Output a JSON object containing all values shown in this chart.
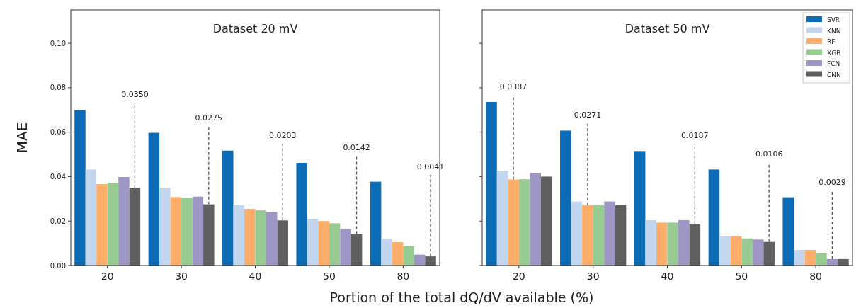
{
  "chart_data": [
    {
      "type": "bar",
      "title": "Dataset 20 mV",
      "xlabel": "Portion of the total dQ/dV available (%)",
      "ylabel": "MAE",
      "categories": [
        "20",
        "30",
        "40",
        "50",
        "80"
      ],
      "series": [
        {
          "color": "#0b6bb5",
          "values": [
            0.07,
            0.0597,
            0.0517,
            0.0462,
            0.0377
          ]
        },
        {
          "color": "#c3d6ef",
          "values": [
            0.0432,
            0.035,
            0.0272,
            0.021,
            0.012
          ]
        },
        {
          "color": "#fdae6b",
          "values": [
            0.0366,
            0.0308,
            0.0255,
            0.02,
            0.0105
          ]
        },
        {
          "color": "#98cb92",
          "values": [
            0.0372,
            0.0306,
            0.0248,
            0.019,
            0.0089
          ]
        },
        {
          "color": "#9e97c5",
          "values": [
            0.0398,
            0.031,
            0.0242,
            0.0166,
            0.0049
          ]
        },
        {
          "color": "#5f5f5f",
          "values": [
            0.035,
            0.0275,
            0.0203,
            0.0142,
            0.0041
          ]
        }
      ],
      "annotations": [
        {
          "text": "0.0350",
          "y": 0.035
        },
        {
          "text": "0.0275",
          "y": 0.0275
        },
        {
          "text": "0.0203",
          "y": 0.0203
        },
        {
          "text": "0.0142",
          "y": 0.0142
        },
        {
          "text": "0.0041",
          "y": 0.0041
        }
      ],
      "ylim": [
        0,
        0.115
      ],
      "yticks": [
        {
          "value": 0,
          "label": "0.00"
        },
        {
          "value": 0.02,
          "label": "0.02"
        },
        {
          "value": 0.04,
          "label": "0.04"
        },
        {
          "value": 0.06,
          "label": "0.06"
        },
        {
          "value": 0.08,
          "label": "0.08"
        },
        {
          "value": 0.1,
          "label": "0.10"
        }
      ],
      "grid": false,
      "legend": false
    },
    {
      "type": "bar",
      "title": "Dataset 50 mV",
      "categories": [
        "20",
        "30",
        "40",
        "50",
        "80"
      ],
      "series": [
        {
          "name": "SVR",
          "color": "#0b6bb5",
          "values": [
            0.0736,
            0.0607,
            0.0515,
            0.0432,
            0.0307
          ]
        },
        {
          "name": "KNN",
          "color": "#c3d6ef",
          "values": [
            0.0427,
            0.0288,
            0.0204,
            0.0131,
            0.007
          ]
        },
        {
          "name": "RF",
          "color": "#fdae6b",
          "values": [
            0.0387,
            0.0271,
            0.0193,
            0.0131,
            0.007
          ]
        },
        {
          "name": "XGB",
          "color": "#98cb92",
          "values": [
            0.0388,
            0.0271,
            0.0193,
            0.0122,
            0.0055
          ]
        },
        {
          "name": "FCN",
          "color": "#9e97c5",
          "values": [
            0.0416,
            0.0288,
            0.0204,
            0.0117,
            0.0029
          ]
        },
        {
          "name": "CNN",
          "color": "#5f5f5f",
          "values": [
            0.04,
            0.0271,
            0.0187,
            0.0106,
            0.0029
          ]
        }
      ],
      "annotations": [
        {
          "text": "0.0387",
          "y": 0.0387
        },
        {
          "text": "0.0271",
          "y": 0.0271
        },
        {
          "text": "0.0187",
          "y": 0.0187
        },
        {
          "text": "0.0106",
          "y": 0.0106
        },
        {
          "text": "0.0029",
          "y": 0.0029
        }
      ],
      "ylim": [
        0,
        0.115
      ],
      "yticks": [
        {
          "value": 0,
          "label": null
        },
        {
          "value": 0.02,
          "label": null
        },
        {
          "value": 0.04,
          "label": null
        },
        {
          "value": 0.06,
          "label": null
        },
        {
          "value": 0.08,
          "label": null
        },
        {
          "value": 0.1,
          "label": null
        }
      ],
      "tick_labels": "x",
      "grid": false,
      "legend": "top right"
    }
  ]
}
